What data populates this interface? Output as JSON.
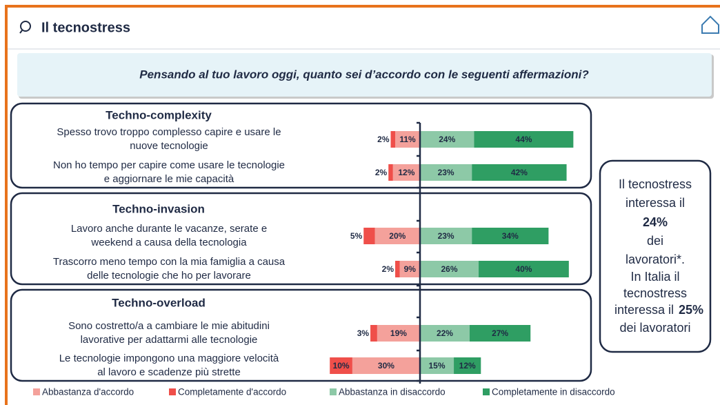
{
  "header": {
    "title": "Il tecnostress"
  },
  "question": "Pensando al tuo lavoro oggi, quanto sei d’accordo con le seguenti affermazioni?",
  "chart_data": {
    "type": "diverging_bar",
    "groups": [
      "Techno-complexity",
      "Techno-invasion",
      "Techno-overload"
    ],
    "categories": [
      [
        "Spesso trovo troppo complesso capire e usare le",
        "nuove tecnologie"
      ],
      [
        "Non ho tempo per capire come usare le tecnologie",
        "e aggiornare le mie capacità"
      ],
      [
        "Lavoro anche durante le vacanze, serate e",
        "weekend a causa della tecnologia"
      ],
      [
        "Trascorro meno tempo con la mia famiglia a causa",
        "delle tecnologie che ho per lavorare"
      ],
      [
        "Sono costretto/a a cambiare le mie abitudini",
        "lavorative  per adattarmi alle tecnologie"
      ],
      [
        "Le tecnologie impongono una maggiore velocità",
        "al lavoro e scadenze più strette"
      ]
    ],
    "series": [
      {
        "name": "Abbastanza d'accordo",
        "color": "#f4a19b",
        "values": [
          11,
          12,
          20,
          9,
          19,
          30
        ],
        "value_labels": [
          "11%",
          "12%",
          "20%",
          "9%",
          "19%",
          "30%"
        ]
      },
      {
        "name": "Completamente d'accordo",
        "color": "#ef4f4a",
        "values": [
          2,
          2,
          5,
          2,
          3,
          10
        ],
        "value_labels": [
          "2%",
          "2%",
          "5%",
          "2%",
          "3%",
          "10%"
        ]
      },
      {
        "name": "Abbastanza in disaccordo",
        "color": "#8dc9a7",
        "values": [
          24,
          23,
          23,
          26,
          22,
          15
        ],
        "value_labels": [
          "24%",
          "23%",
          "23%",
          "26%",
          "22%",
          "15%"
        ]
      },
      {
        "name": "Completamente in disaccordo",
        "color": "#2f9e63",
        "values": [
          44,
          42,
          34,
          40,
          27,
          12
        ],
        "value_labels": [
          "44%",
          "42%",
          "34%",
          "40%",
          "27%",
          "12%"
        ]
      }
    ]
  },
  "callout": {
    "first": [
      "Il tecnostress",
      "interessa il"
    ],
    "first_value": "24%",
    "first_tail": [
      "dei",
      "lavoratori*."
    ],
    "second": [
      "In Italia il",
      "tecnostress",
      "interessa il"
    ],
    "second_value": "25%",
    "second_tail": "dei lavoratori"
  }
}
